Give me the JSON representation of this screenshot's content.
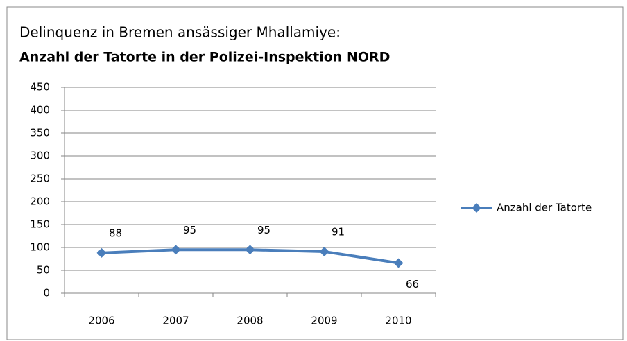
{
  "chart_data": {
    "type": "line",
    "title": "Delinquenz in Bremen ansässiger Mhallamiye:",
    "subtitle": "Anzahl der Tatorte in der Polizei-Inspektion NORD",
    "categories": [
      "2006",
      "2007",
      "2008",
      "2009",
      "2010"
    ],
    "series": [
      {
        "name": "Anzahl der Tatorte",
        "color": "#4a7ebb",
        "values": [
          88,
          95,
          95,
          91,
          66
        ]
      }
    ],
    "ylim": [
      0,
      450
    ],
    "yticks": [
      0,
      50,
      100,
      150,
      200,
      250,
      300,
      350,
      400,
      450
    ],
    "grid": true,
    "legend": "right",
    "data_labels": true
  }
}
